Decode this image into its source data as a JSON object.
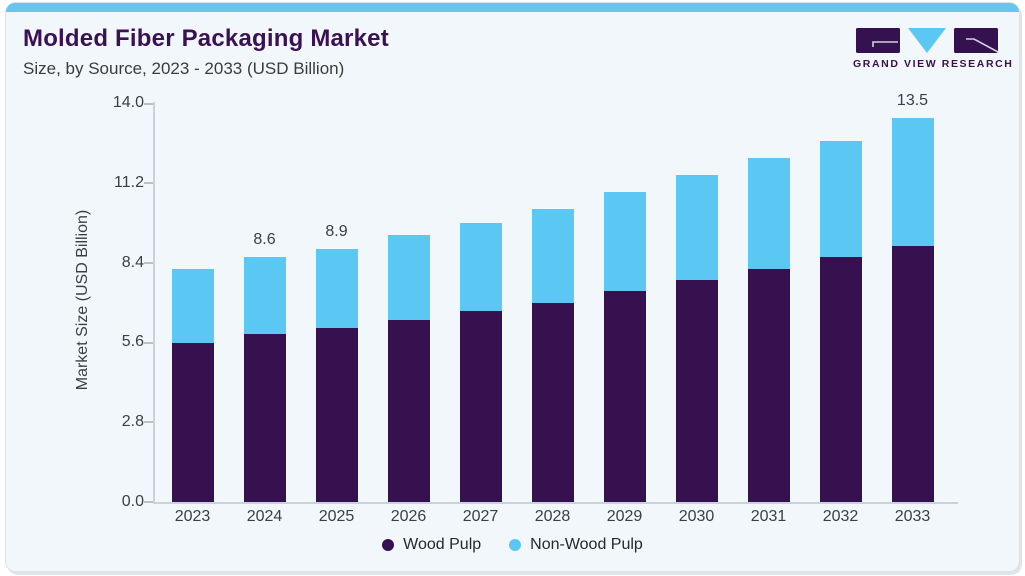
{
  "header": {
    "title": "Molded Fiber Packaging Market",
    "subtitle": "Size, by Source, 2023 - 2033 (USD Billion)",
    "logo_text": "GRAND VIEW RESEARCH"
  },
  "colors": {
    "accent_bar": "#67C5EE",
    "card_background": "#F2F7FB",
    "title_purple": "#3B1156",
    "wood_pulp": "#351150",
    "non_wood_pulp": "#5BC8F3",
    "axis_line": "#C9D2D9",
    "axis_text": "#3A3F46"
  },
  "chart_data": {
    "type": "bar",
    "stacked": true,
    "title": "Molded Fiber Packaging Market Size, by Source, 2023 - 2033 (USD Billion)",
    "categories": [
      "2023",
      "2024",
      "2025",
      "2026",
      "2027",
      "2028",
      "2029",
      "2030",
      "2031",
      "2032",
      "2033"
    ],
    "series": [
      {
        "name": "Wood Pulp",
        "color": "#351150",
        "values": [
          5.6,
          5.9,
          6.1,
          6.4,
          6.7,
          7.0,
          7.4,
          7.8,
          8.2,
          8.6,
          9.0
        ]
      },
      {
        "name": "Non-Wood Pulp",
        "color": "#5BC8F3",
        "values": [
          2.6,
          2.7,
          2.8,
          3.0,
          3.1,
          3.3,
          3.5,
          3.7,
          3.9,
          4.1,
          4.5
        ]
      }
    ],
    "totals": [
      8.2,
      8.6,
      8.9,
      9.4,
      9.8,
      10.3,
      10.9,
      11.5,
      12.1,
      12.7,
      13.5
    ],
    "value_labels": [
      "",
      "8.6",
      "8.9",
      "",
      "",
      "",
      "",
      "",
      "",
      "",
      "13.5"
    ],
    "xlabel": "",
    "ylabel": "Market Size (USD Billion)",
    "yticks": [
      "0.0",
      "2.8",
      "5.6",
      "8.4",
      "11.2",
      "14.0"
    ],
    "ylim": [
      0,
      14.0
    ],
    "grid": false,
    "legend_position": "bottom"
  },
  "legend": {
    "items": [
      {
        "label": "Wood Pulp",
        "color": "#351150"
      },
      {
        "label": "Non-Wood Pulp",
        "color": "#5BC8F3"
      }
    ]
  }
}
